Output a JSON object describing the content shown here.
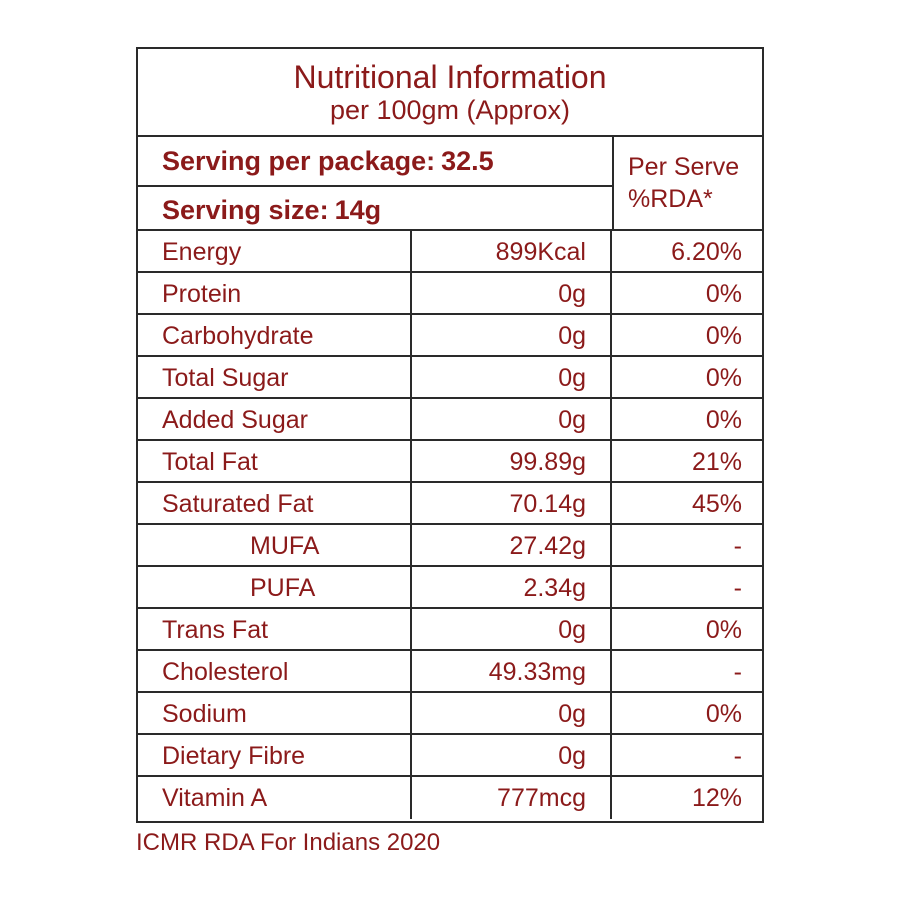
{
  "title": "Nutritional Information",
  "subtitle": "per 100gm (Approx)",
  "serving": {
    "package_label": "Serving per package:",
    "package_value": "32.5",
    "size_label": "Serving size:",
    "size_value": "14g"
  },
  "per_serve_header": {
    "line1": "Per Serve",
    "line2": "%RDA*"
  },
  "rows": [
    {
      "name": "Energy",
      "value": "899Kcal",
      "rda": "6.20%"
    },
    {
      "name": "Protein",
      "value": "0g",
      "rda": "0%"
    },
    {
      "name": "Carbohydrate",
      "value": "0g",
      "rda": "0%"
    },
    {
      "name": "Total Sugar",
      "value": "0g",
      "rda": "0%"
    },
    {
      "name": "Added Sugar",
      "value": "0g",
      "rda": "0%"
    },
    {
      "name": "Total Fat",
      "value": "99.89g",
      "rda": "21%"
    },
    {
      "name": "Saturated Fat",
      "value": "70.14g",
      "rda": "45%"
    },
    {
      "name": "MUFA",
      "value": "27.42g",
      "rda": "-",
      "indent": true
    },
    {
      "name": "PUFA",
      "value": "2.34g",
      "rda": "-",
      "indent": true
    },
    {
      "name": "Trans Fat",
      "value": "0g",
      "rda": "0%"
    },
    {
      "name": "Cholesterol",
      "value": "49.33mg",
      "rda": "-"
    },
    {
      "name": "Sodium",
      "value": "0g",
      "rda": "0%"
    },
    {
      "name": "Dietary Fibre",
      "value": "0g",
      "rda": "-"
    },
    {
      "name": "Vitamin A",
      "value": "777mcg",
      "rda": "12%"
    }
  ],
  "footnote": "ICMR RDA For Indians 2020",
  "colors": {
    "text": "#8b1a1a",
    "border": "#2a2a2a",
    "background": "#ffffff"
  }
}
